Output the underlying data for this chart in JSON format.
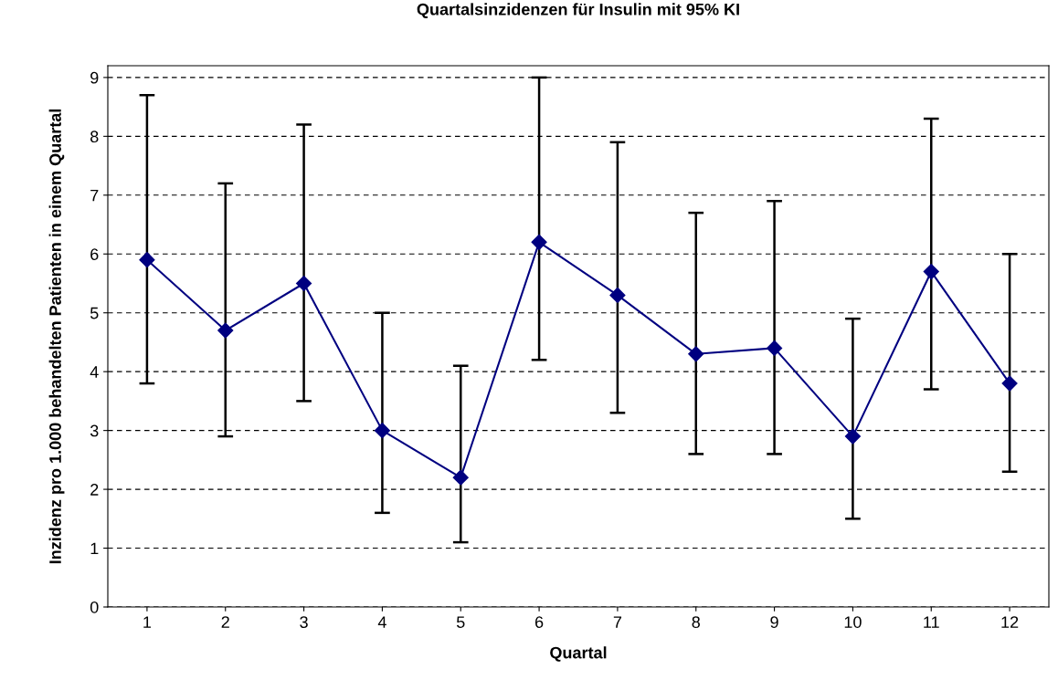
{
  "chart_data": {
    "type": "line",
    "title": "Quartalsinzidenzen für Insulin mit 95% KI",
    "xlabel": "Quartal",
    "ylabel": "Inzidenz pro 1.000 behandelten Patienten in einem Quartal",
    "categories": [
      "1",
      "2",
      "3",
      "4",
      "5",
      "6",
      "7",
      "8",
      "9",
      "10",
      "11",
      "12"
    ],
    "series": [
      {
        "color": "#000080",
        "values": [
          5.9,
          4.7,
          5.5,
          3.0,
          2.2,
          6.2,
          5.3,
          4.3,
          4.4,
          2.9,
          5.7,
          3.8
        ],
        "errors": [
          [
            3.8,
            8.7
          ],
          [
            2.9,
            7.2
          ],
          [
            3.5,
            8.2
          ],
          [
            1.6,
            5.0
          ],
          [
            1.1,
            4.1
          ],
          [
            4.2,
            9.0
          ],
          [
            3.3,
            7.9
          ],
          [
            2.6,
            6.7
          ],
          [
            2.6,
            6.9
          ],
          [
            1.5,
            4.9
          ],
          [
            3.7,
            8.3
          ],
          [
            2.3,
            6.0
          ]
        ]
      }
    ],
    "ylim": [
      0,
      9.2
    ],
    "yticks": [
      0,
      1,
      2,
      3,
      4,
      5,
      6,
      7,
      8,
      9
    ],
    "grid": "y",
    "marker": "diamond",
    "line_style": "solid"
  }
}
